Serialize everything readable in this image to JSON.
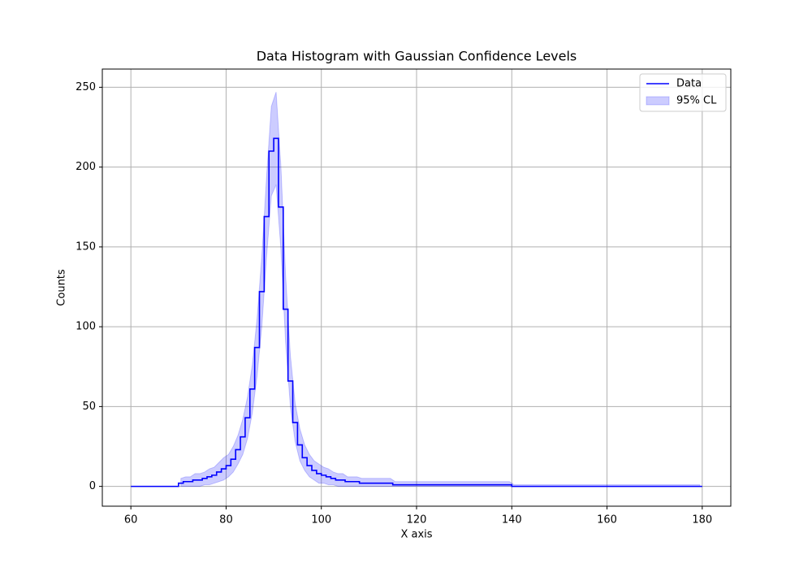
{
  "chart_data": {
    "type": "histogram",
    "title": "Data Histogram with Gaussian Confidence Levels",
    "x_label": "X axis",
    "y_label": "Counts",
    "bins": [
      60,
      61,
      62,
      63,
      64,
      65,
      66,
      67,
      68,
      69,
      70,
      71,
      72,
      73,
      74,
      75,
      76,
      77,
      78,
      79,
      80,
      81,
      82,
      83,
      84,
      85,
      86,
      87,
      88,
      89,
      90,
      91,
      92,
      93,
      94,
      95,
      96,
      97,
      98,
      99,
      100,
      101,
      102,
      103,
      104,
      105,
      106,
      107,
      108,
      109,
      110,
      111,
      112,
      113,
      114,
      115,
      116,
      117,
      118,
      119,
      120,
      121,
      122,
      123,
      124,
      125,
      126,
      127,
      128,
      129,
      130,
      131,
      132,
      133,
      134,
      135,
      136,
      137,
      138,
      139,
      140,
      141,
      142,
      143,
      144,
      145,
      146,
      147,
      148,
      149,
      150,
      151,
      152,
      153,
      154,
      155,
      156,
      157,
      158,
      159,
      160,
      161,
      162,
      163,
      164,
      165,
      166,
      167,
      168,
      169,
      170,
      171,
      172,
      173,
      174,
      175,
      176,
      177,
      178,
      179,
      180
    ],
    "series": [
      {
        "name": "Data",
        "color": "#0000ff",
        "values": [
          0,
          0,
          0,
          0,
          0,
          0,
          0,
          0,
          0,
          0,
          2,
          3,
          3,
          4,
          4,
          5,
          6,
          7,
          9,
          11,
          13,
          17,
          23,
          31,
          43,
          61,
          87,
          122,
          169,
          210,
          218,
          175,
          111,
          66,
          40,
          26,
          18,
          13,
          10,
          8,
          7,
          6,
          5,
          4,
          4,
          3,
          3,
          3,
          2,
          2,
          2,
          2,
          2,
          2,
          2,
          1,
          1,
          1,
          1,
          1,
          1,
          1,
          1,
          1,
          1,
          1,
          1,
          1,
          1,
          1,
          1,
          1,
          1,
          1,
          1,
          1,
          1,
          1,
          1,
          1,
          0,
          0,
          0,
          0,
          0,
          0,
          0,
          0,
          0,
          0,
          0,
          0,
          0,
          0,
          0,
          0,
          0,
          0,
          0,
          0,
          0,
          0,
          0,
          0,
          0,
          0,
          0,
          0,
          0,
          0,
          0,
          0,
          0,
          0,
          0,
          0,
          0,
          0,
          0,
          0
        ]
      },
      {
        "name": "95% CL",
        "color": "#0000ff",
        "lower": [
          null,
          null,
          null,
          null,
          null,
          null,
          null,
          null,
          null,
          null,
          0,
          0,
          0,
          0,
          0,
          1,
          1,
          2,
          3,
          4,
          6,
          9,
          14,
          20,
          30,
          46,
          69,
          100,
          144,
          182,
          189,
          149,
          90,
          50,
          28,
          16,
          10,
          6,
          4,
          2,
          2,
          1,
          1,
          0,
          0,
          0,
          0,
          0,
          0,
          0,
          0,
          0,
          0,
          0,
          0,
          0,
          0,
          0,
          0,
          0,
          0,
          0,
          0,
          0,
          0,
          0,
          0,
          0,
          0,
          0,
          0,
          0,
          0,
          0,
          0,
          0,
          0,
          0,
          0,
          0,
          0,
          0,
          0,
          0,
          0,
          0,
          0,
          0,
          0,
          0,
          0,
          0,
          0,
          0,
          0,
          0,
          0,
          0,
          0,
          0,
          0,
          0,
          0,
          0,
          0,
          0,
          0,
          0,
          0,
          0,
          0,
          0,
          0,
          0,
          0,
          0,
          0,
          0,
          0,
          0
        ],
        "upper": [
          null,
          null,
          null,
          null,
          null,
          null,
          null,
          null,
          null,
          null,
          5,
          6,
          6,
          8,
          8,
          9,
          11,
          12,
          15,
          18,
          20,
          25,
          32,
          42,
          56,
          76,
          105,
          144,
          194,
          238,
          247,
          201,
          132,
          82,
          52,
          36,
          26,
          20,
          16,
          14,
          12,
          11,
          9,
          8,
          8,
          6,
          6,
          6,
          5,
          5,
          5,
          5,
          5,
          5,
          5,
          3,
          3,
          3,
          3,
          3,
          3,
          3,
          3,
          3,
          3,
          3,
          3,
          3,
          3,
          3,
          3,
          3,
          3,
          3,
          3,
          3,
          3,
          3,
          3,
          3,
          1,
          1,
          1,
          1,
          1,
          1,
          1,
          1,
          1,
          1,
          1,
          1,
          1,
          1,
          1,
          1,
          1,
          1,
          1,
          1,
          1,
          1,
          1,
          1,
          1,
          1,
          1,
          1,
          1,
          1,
          1,
          1,
          1,
          1,
          1,
          1,
          1,
          1,
          1,
          1
        ]
      }
    ],
    "xlim": [
      54,
      186
    ],
    "ylim": [
      -12.4,
      261.4
    ],
    "xticks": [
      60,
      80,
      100,
      120,
      140,
      160,
      180
    ],
    "yticks": [
      0,
      50,
      100,
      150,
      200,
      250
    ],
    "grid": true,
    "legend": "upper right"
  }
}
